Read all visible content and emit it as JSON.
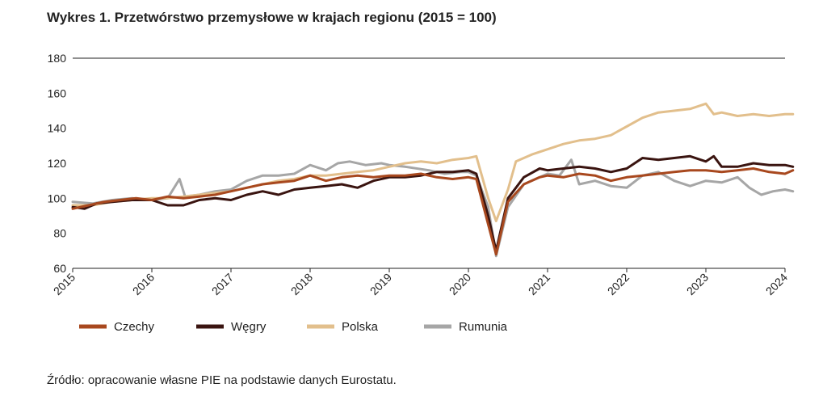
{
  "title": "Wykres 1.  Przetwórstwo przemysłowe w krajach regionu (2015 = 100)",
  "source": "Źródło: opracowanie własne PIE na podstawie danych Eurostatu.",
  "chart_data": {
    "type": "line",
    "ylim": [
      60,
      180
    ],
    "yticks": [
      "60",
      "80",
      "100",
      "120",
      "140",
      "160",
      "180"
    ],
    "xlim": [
      2015,
      2024
    ],
    "xticks": [
      "2015",
      "2016",
      "2017",
      "2018",
      "2019",
      "2020",
      "2021",
      "2022",
      "2023",
      "2024"
    ],
    "grid": "top-border-only",
    "legend_position": "bottom-left",
    "series": [
      {
        "name": "Rumunia",
        "color": "#a6a6a6",
        "points": [
          [
            2015,
            98
          ],
          [
            2015.25,
            97
          ],
          [
            2015.5,
            99
          ],
          [
            2015.75,
            100
          ],
          [
            2016,
            99
          ],
          [
            2016.2,
            100
          ],
          [
            2016.35,
            111
          ],
          [
            2016.42,
            101
          ],
          [
            2016.6,
            102
          ],
          [
            2016.8,
            104
          ],
          [
            2017,
            105
          ],
          [
            2017.2,
            110
          ],
          [
            2017.4,
            113
          ],
          [
            2017.6,
            113
          ],
          [
            2017.8,
            114
          ],
          [
            2018,
            119
          ],
          [
            2018.2,
            116
          ],
          [
            2018.35,
            120
          ],
          [
            2018.5,
            121
          ],
          [
            2018.7,
            119
          ],
          [
            2018.9,
            120
          ],
          [
            2019,
            119
          ],
          [
            2019.2,
            118
          ],
          [
            2019.5,
            116
          ],
          [
            2019.7,
            114
          ],
          [
            2019.9,
            115
          ],
          [
            2020,
            115
          ],
          [
            2020.1,
            113
          ],
          [
            2020.25,
            95
          ],
          [
            2020.35,
            67
          ],
          [
            2020.5,
            95
          ],
          [
            2020.7,
            108
          ],
          [
            2020.9,
            112
          ],
          [
            2021,
            114
          ],
          [
            2021.15,
            113
          ],
          [
            2021.3,
            122
          ],
          [
            2021.4,
            108
          ],
          [
            2021.6,
            110
          ],
          [
            2021.8,
            107
          ],
          [
            2022,
            106
          ],
          [
            2022.2,
            113
          ],
          [
            2022.4,
            115
          ],
          [
            2022.6,
            110
          ],
          [
            2022.8,
            107
          ],
          [
            2023,
            110
          ],
          [
            2023.2,
            109
          ],
          [
            2023.4,
            112
          ],
          [
            2023.55,
            106
          ],
          [
            2023.7,
            102
          ],
          [
            2023.85,
            104
          ],
          [
            2024,
            105
          ],
          [
            2024.1,
            104
          ]
        ]
      },
      {
        "name": "Polska",
        "color": "#e2bf8c",
        "points": [
          [
            2015,
            96
          ],
          [
            2015.25,
            96
          ],
          [
            2015.5,
            98
          ],
          [
            2015.75,
            99
          ],
          [
            2016,
            100
          ],
          [
            2016.2,
            100
          ],
          [
            2016.4,
            101
          ],
          [
            2016.6,
            102
          ],
          [
            2016.8,
            103
          ],
          [
            2017,
            104
          ],
          [
            2017.2,
            106
          ],
          [
            2017.4,
            108
          ],
          [
            2017.6,
            110
          ],
          [
            2017.8,
            111
          ],
          [
            2018,
            113
          ],
          [
            2018.2,
            113
          ],
          [
            2018.4,
            114
          ],
          [
            2018.6,
            115
          ],
          [
            2018.8,
            116
          ],
          [
            2019,
            118
          ],
          [
            2019.2,
            120
          ],
          [
            2019.4,
            121
          ],
          [
            2019.6,
            120
          ],
          [
            2019.8,
            122
          ],
          [
            2020,
            123
          ],
          [
            2020.1,
            124
          ],
          [
            2020.25,
            100
          ],
          [
            2020.35,
            87
          ],
          [
            2020.5,
            105
          ],
          [
            2020.6,
            121
          ],
          [
            2020.8,
            125
          ],
          [
            2021,
            128
          ],
          [
            2021.2,
            131
          ],
          [
            2021.4,
            133
          ],
          [
            2021.6,
            134
          ],
          [
            2021.8,
            136
          ],
          [
            2022,
            141
          ],
          [
            2022.2,
            146
          ],
          [
            2022.4,
            149
          ],
          [
            2022.6,
            150
          ],
          [
            2022.8,
            151
          ],
          [
            2023,
            154
          ],
          [
            2023.1,
            148
          ],
          [
            2023.2,
            149
          ],
          [
            2023.4,
            147
          ],
          [
            2023.6,
            148
          ],
          [
            2023.8,
            147
          ],
          [
            2024,
            148
          ],
          [
            2024.1,
            148
          ]
        ]
      },
      {
        "name": "Węgry",
        "color": "#3a1410",
        "points": [
          [
            2015,
            95
          ],
          [
            2015.15,
            94
          ],
          [
            2015.3,
            97
          ],
          [
            2015.5,
            98
          ],
          [
            2015.75,
            99
          ],
          [
            2016,
            99
          ],
          [
            2016.2,
            96
          ],
          [
            2016.4,
            96
          ],
          [
            2016.6,
            99
          ],
          [
            2016.8,
            100
          ],
          [
            2017,
            99
          ],
          [
            2017.2,
            102
          ],
          [
            2017.4,
            104
          ],
          [
            2017.6,
            102
          ],
          [
            2017.8,
            105
          ],
          [
            2018,
            106
          ],
          [
            2018.2,
            107
          ],
          [
            2018.4,
            108
          ],
          [
            2018.6,
            106
          ],
          [
            2018.8,
            110
          ],
          [
            2019,
            112
          ],
          [
            2019.2,
            112
          ],
          [
            2019.4,
            113
          ],
          [
            2019.6,
            115
          ],
          [
            2019.8,
            115
          ],
          [
            2020,
            116
          ],
          [
            2020.1,
            114
          ],
          [
            2020.25,
            90
          ],
          [
            2020.35,
            70
          ],
          [
            2020.5,
            100
          ],
          [
            2020.7,
            112
          ],
          [
            2020.9,
            117
          ],
          [
            2021,
            116
          ],
          [
            2021.2,
            117
          ],
          [
            2021.4,
            118
          ],
          [
            2021.6,
            117
          ],
          [
            2021.8,
            115
          ],
          [
            2022,
            117
          ],
          [
            2022.2,
            123
          ],
          [
            2022.4,
            122
          ],
          [
            2022.6,
            123
          ],
          [
            2022.8,
            124
          ],
          [
            2023,
            121
          ],
          [
            2023.1,
            124
          ],
          [
            2023.2,
            118
          ],
          [
            2023.4,
            118
          ],
          [
            2023.6,
            120
          ],
          [
            2023.8,
            119
          ],
          [
            2024,
            119
          ],
          [
            2024.1,
            118
          ]
        ]
      },
      {
        "name": "Czechy",
        "color": "#a8481e",
        "points": [
          [
            2015,
            94
          ],
          [
            2015.2,
            96
          ],
          [
            2015.4,
            98
          ],
          [
            2015.6,
            99
          ],
          [
            2015.8,
            100
          ],
          [
            2016,
            99
          ],
          [
            2016.2,
            101
          ],
          [
            2016.4,
            100
          ],
          [
            2016.6,
            101
          ],
          [
            2016.8,
            102
          ],
          [
            2017,
            104
          ],
          [
            2017.2,
            106
          ],
          [
            2017.4,
            108
          ],
          [
            2017.6,
            109
          ],
          [
            2017.8,
            110
          ],
          [
            2018,
            113
          ],
          [
            2018.2,
            110
          ],
          [
            2018.4,
            112
          ],
          [
            2018.6,
            113
          ],
          [
            2018.8,
            112
          ],
          [
            2019,
            113
          ],
          [
            2019.2,
            113
          ],
          [
            2019.4,
            114
          ],
          [
            2019.6,
            112
          ],
          [
            2019.8,
            111
          ],
          [
            2020,
            112
          ],
          [
            2020.1,
            111
          ],
          [
            2020.25,
            85
          ],
          [
            2020.35,
            68
          ],
          [
            2020.5,
            98
          ],
          [
            2020.7,
            108
          ],
          [
            2020.9,
            112
          ],
          [
            2021,
            113
          ],
          [
            2021.2,
            112
          ],
          [
            2021.4,
            114
          ],
          [
            2021.6,
            113
          ],
          [
            2021.8,
            110
          ],
          [
            2022,
            112
          ],
          [
            2022.2,
            113
          ],
          [
            2022.4,
            114
          ],
          [
            2022.6,
            115
          ],
          [
            2022.8,
            116
          ],
          [
            2023,
            116
          ],
          [
            2023.2,
            115
          ],
          [
            2023.4,
            116
          ],
          [
            2023.6,
            117
          ],
          [
            2023.8,
            115
          ],
          [
            2024,
            114
          ],
          [
            2024.1,
            116
          ]
        ]
      }
    ],
    "legend": [
      {
        "name": "Czechy",
        "color": "#a8481e"
      },
      {
        "name": "Węgry",
        "color": "#3a1410"
      },
      {
        "name": "Polska",
        "color": "#e2bf8c"
      },
      {
        "name": "Rumunia",
        "color": "#a6a6a6"
      }
    ]
  }
}
